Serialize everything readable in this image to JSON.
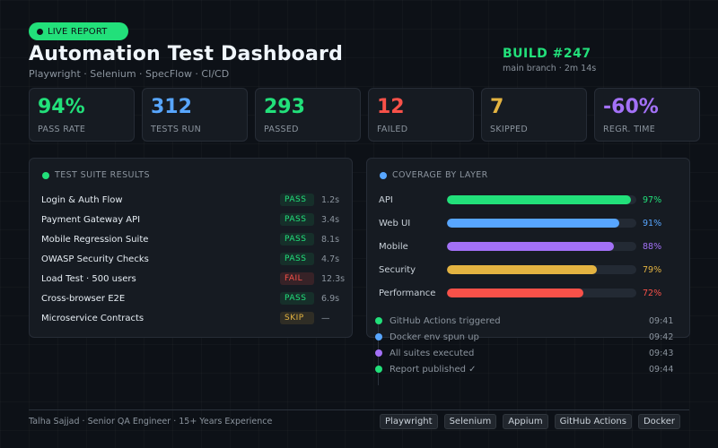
{
  "header": {
    "live_label": "LIVE REPORT",
    "title": "Automation Test Dashboard",
    "subtitle": "Playwright · Selenium · SpecFlow · CI/CD",
    "build": "BUILD #247",
    "build_sub": "main branch · 2m 14s"
  },
  "stats": [
    {
      "value": "94%",
      "label": "PASS RATE",
      "color": "#22e07a"
    },
    {
      "value": "312",
      "label": "TESTS RUN",
      "color": "#58a6ff"
    },
    {
      "value": "293",
      "label": "PASSED",
      "color": "#22e07a"
    },
    {
      "value": "12",
      "label": "FAILED",
      "color": "#f85149"
    },
    {
      "value": "7",
      "label": "SKIPPED",
      "color": "#e3b341"
    },
    {
      "value": "-60%",
      "label": "REGR. TIME",
      "color": "#a371f7"
    }
  ],
  "suites": {
    "title": "TEST SUITE RESULTS",
    "rows": [
      {
        "name": "Login & Auth Flow",
        "status": "PASS",
        "time": "1.2s"
      },
      {
        "name": "Payment Gateway API",
        "status": "PASS",
        "time": "3.4s"
      },
      {
        "name": "Mobile Regression Suite",
        "status": "PASS",
        "time": "8.1s"
      },
      {
        "name": "OWASP Security Checks",
        "status": "PASS",
        "time": "4.7s"
      },
      {
        "name": "Load Test · 500 users",
        "status": "FAIL",
        "time": "12.3s"
      },
      {
        "name": "Cross-browser E2E",
        "status": "PASS",
        "time": "6.9s"
      },
      {
        "name": "Microservice Contracts",
        "status": "SKIP",
        "time": "—"
      }
    ]
  },
  "coverage": {
    "title": "COVERAGE BY LAYER",
    "rows": [
      {
        "label": "API",
        "pct": "97%",
        "value": 97,
        "color": "#22e07a"
      },
      {
        "label": "Web UI",
        "pct": "91%",
        "value": 91,
        "color": "#58a6ff"
      },
      {
        "label": "Mobile",
        "pct": "88%",
        "value": 88,
        "color": "#a371f7"
      },
      {
        "label": "Security",
        "pct": "79%",
        "value": 79,
        "color": "#e3b341"
      },
      {
        "label": "Performance",
        "pct": "72%",
        "value": 72,
        "color": "#f85149"
      }
    ]
  },
  "timeline": [
    {
      "text": "GitHub Actions triggered",
      "time": "09:41",
      "color": "#22e07a"
    },
    {
      "text": "Docker env spun up",
      "time": "09:42",
      "color": "#58a6ff"
    },
    {
      "text": "All suites executed",
      "time": "09:43",
      "color": "#a371f7"
    },
    {
      "text": "Report published ✓",
      "time": "09:44",
      "color": "#22e07a"
    }
  ],
  "footer": {
    "text": "Talha Sajjad · Senior QA Engineer · 15+ Years Experience",
    "tags": [
      "Playwright",
      "Selenium",
      "Appium",
      "GitHub Actions",
      "Docker"
    ]
  },
  "colors": {
    "suite_dot": "#22e07a",
    "coverage_dot": "#58a6ff"
  }
}
